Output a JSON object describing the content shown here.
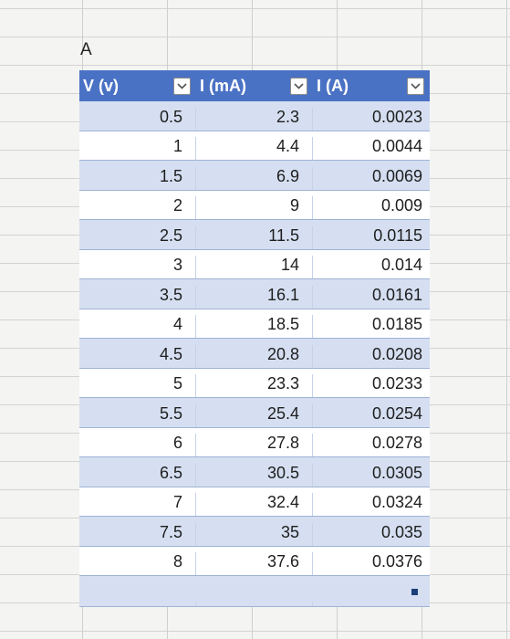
{
  "cell_title": "A",
  "headers": [
    {
      "label": "V (v)"
    },
    {
      "label": "I (mA)"
    },
    {
      "label": "I (A)"
    }
  ],
  "rows": [
    {
      "v": "0.5",
      "ma": "2.3",
      "a": "0.0023"
    },
    {
      "v": "1",
      "ma": "4.4",
      "a": "0.0044"
    },
    {
      "v": "1.5",
      "ma": "6.9",
      "a": "0.0069"
    },
    {
      "v": "2",
      "ma": "9",
      "a": "0.009"
    },
    {
      "v": "2.5",
      "ma": "11.5",
      "a": "0.0115"
    },
    {
      "v": "3",
      "ma": "14",
      "a": "0.014"
    },
    {
      "v": "3.5",
      "ma": "16.1",
      "a": "0.0161"
    },
    {
      "v": "4",
      "ma": "18.5",
      "a": "0.0185"
    },
    {
      "v": "4.5",
      "ma": "20.8",
      "a": "0.0208"
    },
    {
      "v": "5",
      "ma": "23.3",
      "a": "0.0233"
    },
    {
      "v": "5.5",
      "ma": "25.4",
      "a": "0.0254"
    },
    {
      "v": "6",
      "ma": "27.8",
      "a": "0.0278"
    },
    {
      "v": "6.5",
      "ma": "30.5",
      "a": "0.0305"
    },
    {
      "v": "7",
      "ma": "32.4",
      "a": "0.0324"
    },
    {
      "v": "7.5",
      "ma": "35",
      "a": "0.035"
    },
    {
      "v": "8",
      "ma": "37.6",
      "a": "0.0376"
    }
  ],
  "colors": {
    "header": "#4a72c4",
    "band": "#d5dff1",
    "plain": "#ffffff"
  },
  "icons": {
    "filter": "chevron-down-icon",
    "resize": "table-resize-handle"
  }
}
